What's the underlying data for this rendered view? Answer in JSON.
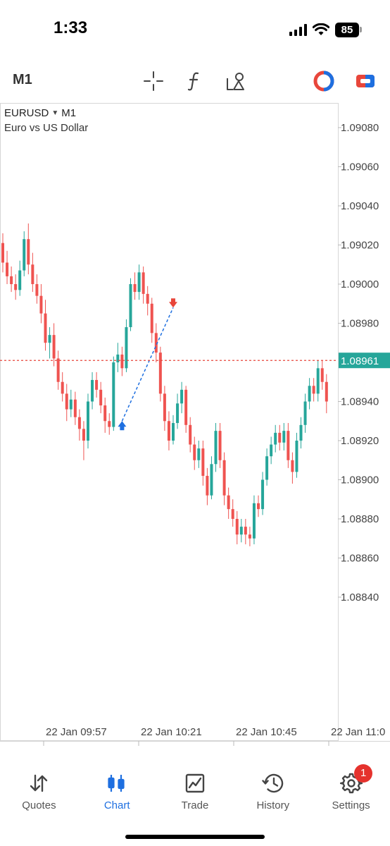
{
  "status_bar": {
    "time": "1:33",
    "battery": "85"
  },
  "toolbar": {
    "timeframe": "M1",
    "tools": [
      "crosshair-icon",
      "indicators-icon",
      "objects-icon",
      "one-click-trading-icon",
      "symbol-switch-icon"
    ],
    "colors": {
      "red": "#e8463b",
      "blue": "#1e6fe0"
    }
  },
  "chart": {
    "symbol": "EURUSD",
    "timeframe": "M1",
    "description": "Euro vs US Dollar",
    "price_labels": [
      "1.09080",
      "1.09060",
      "1.09040",
      "1.09020",
      "1.09000",
      "1.08980",
      "1.08940",
      "1.08920",
      "1.08900",
      "1.08880",
      "1.08860",
      "1.08840"
    ],
    "current_price": "1.08961",
    "time_labels": [
      "22 Jan 09:57",
      "22 Jan 10:21",
      "22 Jan 10:45",
      "22 Jan 11:0"
    ],
    "colors": {
      "bull": "#26a69a",
      "bear": "#ef5350",
      "price_line": "#e8463b",
      "trade_line": "#1e6fe0"
    }
  },
  "chart_data": {
    "type": "candlestick",
    "symbol": "EURUSD",
    "timeframe": "M1",
    "y_range": [
      1.08825,
      1.09095
    ],
    "bid": 1.08961,
    "x_ticks": [
      "22 Jan 09:57",
      "22 Jan 10:21",
      "22 Jan 10:45",
      "22 Jan 11:0"
    ],
    "candles": [
      [
        1.09021,
        1.09011,
        1.09026,
        1.09006
      ],
      [
        1.09011,
        1.09004,
        1.09017,
        1.09
      ],
      [
        1.09004,
        1.09,
        1.09009,
        1.08996
      ],
      [
        1.09,
        1.08997,
        1.09005,
        1.08992
      ],
      [
        1.08997,
        1.09007,
        1.09012,
        1.08994
      ],
      [
        1.09007,
        1.09023,
        1.09027,
        1.09004
      ],
      [
        1.09023,
        1.0901,
        1.09031,
        1.09005
      ],
      [
        1.0901,
        1.09,
        1.09016,
        1.08996
      ],
      [
        1.09,
        1.08994,
        1.09005,
        1.0899
      ],
      [
        1.08994,
        1.08985,
        1.09,
        1.0898
      ],
      [
        1.08985,
        1.0897,
        1.08992,
        1.08966
      ],
      [
        1.0897,
        1.08974,
        1.08978,
        1.08962
      ],
      [
        1.08974,
        1.08962,
        1.0898,
        1.08958
      ],
      [
        1.08962,
        1.0895,
        1.08966,
        1.08946
      ],
      [
        1.0895,
        1.08944,
        1.08955,
        1.0894
      ],
      [
        1.08944,
        1.08936,
        1.08949,
        1.0893
      ],
      [
        1.08936,
        1.08941,
        1.08946,
        1.08932
      ],
      [
        1.08941,
        1.08932,
        1.08945,
        1.08928
      ],
      [
        1.08932,
        1.08926,
        1.08936,
        1.0892
      ],
      [
        1.08926,
        1.0892,
        1.0893,
        1.0891
      ],
      [
        1.0892,
        1.0894,
        1.08944,
        1.08916
      ],
      [
        1.0894,
        1.08951,
        1.08955,
        1.08936
      ],
      [
        1.08951,
        1.08946,
        1.08955,
        1.08942
      ],
      [
        1.08946,
        1.08938,
        1.0895,
        1.08934
      ],
      [
        1.08938,
        1.0893,
        1.08942,
        1.08924
      ],
      [
        1.0893,
        1.08927,
        1.08934,
        1.08923
      ],
      [
        1.08927,
        1.0896,
        1.08963,
        1.08925
      ],
      [
        1.0896,
        1.08964,
        1.0897,
        1.08955
      ],
      [
        1.08964,
        1.08957,
        1.08968,
        1.08953
      ],
      [
        1.08957,
        1.08978,
        1.08982,
        1.08955
      ],
      [
        1.08978,
        1.09,
        1.09003,
        1.08976
      ],
      [
        1.09,
        1.08996,
        1.09006,
        1.08992
      ],
      [
        1.08996,
        1.09006,
        1.0901,
        1.08992
      ],
      [
        1.09006,
        1.08995,
        1.09009,
        1.0899
      ],
      [
        1.08995,
        1.0899,
        1.08999,
        1.08984
      ],
      [
        1.0899,
        1.08975,
        1.08993,
        1.0897
      ],
      [
        1.08975,
        1.08965,
        1.0898,
        1.0896
      ],
      [
        1.08965,
        1.08944,
        1.08968,
        1.0894
      ],
      [
        1.08944,
        1.0893,
        1.08948,
        1.08925
      ],
      [
        1.0893,
        1.0892,
        1.08935,
        1.08915
      ],
      [
        1.0892,
        1.08929,
        1.08933,
        1.08918
      ],
      [
        1.08929,
        1.08939,
        1.08944,
        1.08926
      ],
      [
        1.08939,
        1.08946,
        1.0895,
        1.08934
      ],
      [
        1.08946,
        1.08928,
        1.08948,
        1.08924
      ],
      [
        1.08928,
        1.08918,
        1.08932,
        1.08914
      ],
      [
        1.08918,
        1.0891,
        1.08922,
        1.08905
      ],
      [
        1.0891,
        1.08916,
        1.0892,
        1.08906
      ],
      [
        1.08916,
        1.08902,
        1.0892,
        1.08897
      ],
      [
        1.08902,
        1.08892,
        1.08906,
        1.08887
      ],
      [
        1.08892,
        1.08908,
        1.08912,
        1.0889
      ],
      [
        1.08908,
        1.08925,
        1.08929,
        1.08904
      ],
      [
        1.08925,
        1.0891,
        1.08929,
        1.08906
      ],
      [
        1.0891,
        1.08892,
        1.08914,
        1.08887
      ],
      [
        1.08892,
        1.08885,
        1.08896,
        1.0888
      ],
      [
        1.08885,
        1.0888,
        1.0889,
        1.08876
      ],
      [
        1.0888,
        1.08872,
        1.08884,
        1.08867
      ],
      [
        1.08872,
        1.08876,
        1.0888,
        1.08868
      ],
      [
        1.08876,
        1.08872,
        1.0888,
        1.08867
      ],
      [
        1.08872,
        1.0887,
        1.08876,
        1.08866
      ],
      [
        1.0887,
        1.08888,
        1.08892,
        1.08867
      ],
      [
        1.08888,
        1.08885,
        1.08892,
        1.08881
      ],
      [
        1.08885,
        1.089,
        1.08904,
        1.08882
      ],
      [
        1.089,
        1.08912,
        1.08916,
        1.08897
      ],
      [
        1.08912,
        1.08918,
        1.08922,
        1.08908
      ],
      [
        1.08918,
        1.08924,
        1.08928,
        1.08914
      ],
      [
        1.08924,
        1.08919,
        1.08928,
        1.08915
      ],
      [
        1.08919,
        1.08925,
        1.08929,
        1.08915
      ],
      [
        1.08925,
        1.0891,
        1.08929,
        1.08906
      ],
      [
        1.0891,
        1.08904,
        1.08914,
        1.08898
      ],
      [
        1.08904,
        1.0892,
        1.08924,
        1.08901
      ],
      [
        1.0892,
        1.08928,
        1.08932,
        1.08916
      ],
      [
        1.08928,
        1.0894,
        1.08944,
        1.08924
      ],
      [
        1.0894,
        1.08948,
        1.08952,
        1.08936
      ],
      [
        1.08948,
        1.08944,
        1.08952,
        1.0894
      ],
      [
        1.08944,
        1.08957,
        1.08961,
        1.0894
      ],
      [
        1.08957,
        1.0895,
        1.08961,
        1.08946
      ],
      [
        1.0895,
        1.0894,
        1.08954,
        1.08934
      ]
    ],
    "trade": {
      "buy_price": 1.0893,
      "sell_price": 1.08988
    }
  },
  "nav": {
    "items": [
      {
        "label": "Quotes",
        "icon": "quotes-arrows-icon"
      },
      {
        "label": "Chart",
        "icon": "chart-candles-icon"
      },
      {
        "label": "Trade",
        "icon": "trade-chart-icon"
      },
      {
        "label": "History",
        "icon": "history-clock-icon"
      },
      {
        "label": "Settings",
        "icon": "settings-gear-icon"
      }
    ],
    "settings_badge": "1"
  }
}
